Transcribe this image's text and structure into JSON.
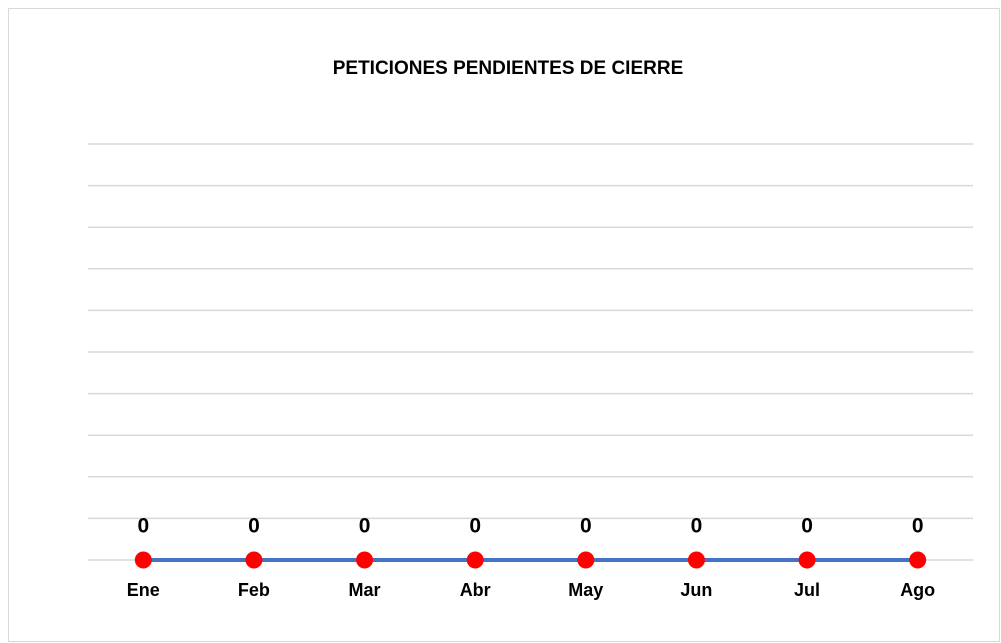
{
  "chart_data": {
    "type": "line",
    "title": "PETICIONES PENDIENTES DE CIERRE",
    "categories": [
      "Ene",
      "Feb",
      "Mar",
      "Abr",
      "May",
      "Jun",
      "Jul",
      "Ago"
    ],
    "series": [
      {
        "color": "#4472c4",
        "marker_color": "#ff0000",
        "values": [
          0,
          0,
          0,
          0,
          0,
          0,
          0,
          0
        ]
      }
    ],
    "ylim": [
      0,
      10
    ],
    "yticks": [
      0,
      1,
      2,
      3,
      4,
      5,
      6,
      7,
      8,
      9,
      10
    ],
    "grid": true
  }
}
